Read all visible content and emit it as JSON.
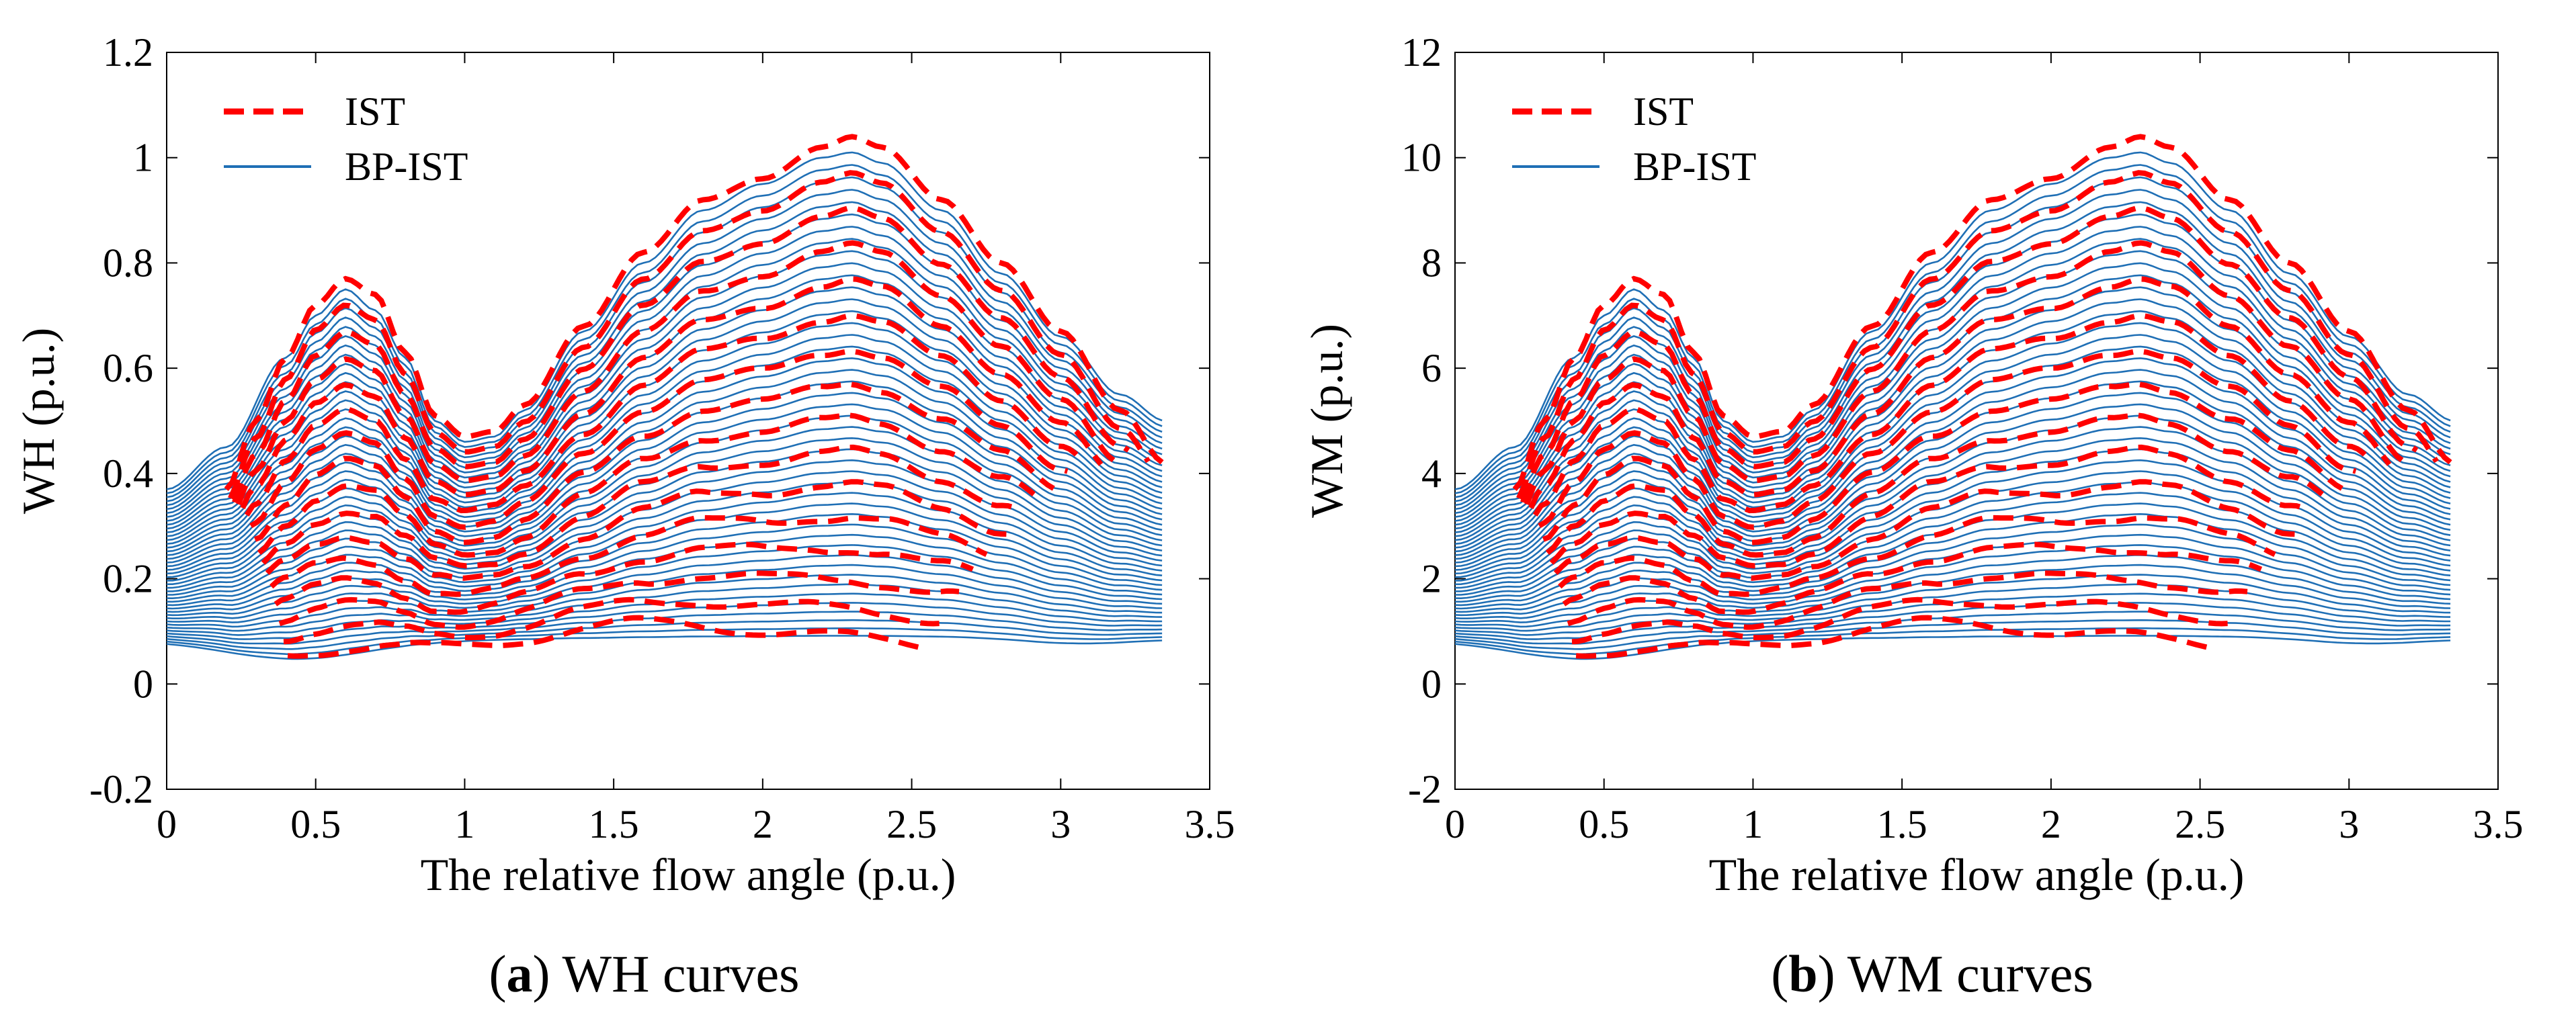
{
  "chart_data": [
    {
      "type": "line",
      "caption_letter": "a",
      "caption_text": "WH curves",
      "ylabel": "WH (p.u.)",
      "xlabel": "The relative flow angle (p.u.)",
      "xlim": [
        0,
        3.5
      ],
      "ylim": [
        -0.2,
        1.2
      ],
      "xticks": [
        0,
        0.5,
        1,
        1.5,
        2,
        2.5,
        3,
        3.5
      ],
      "xtick_labels": [
        "0",
        "0.5",
        "1",
        "1.5",
        "2",
        "2.5",
        "3",
        "3.5"
      ],
      "yticks": [
        -0.2,
        0,
        0.2,
        0.4,
        0.6,
        0.8,
        1,
        1.2
      ],
      "ytick_labels": [
        "-0.2",
        "0",
        "0.2",
        "0.4",
        "0.6",
        "0.8",
        "1",
        "1.2"
      ],
      "legend": [
        "IST",
        "BP-IST"
      ],
      "legend_position": "top-left",
      "series": [
        {
          "name": "IST",
          "style": "dashed",
          "color": "#ff0000",
          "count": 16,
          "top_curve_x": [
            0.2,
            0.3,
            0.4,
            0.5,
            0.6,
            0.7,
            0.8,
            0.9,
            1.0,
            1.1,
            1.2,
            1.4,
            1.6,
            1.8,
            2.0,
            2.2,
            2.3,
            2.4,
            2.6,
            2.8,
            3.0,
            3.2,
            3.35
          ],
          "top_curve_y": [
            0.37,
            0.5,
            0.62,
            0.72,
            0.77,
            0.74,
            0.63,
            0.51,
            0.47,
            0.48,
            0.53,
            0.68,
            0.82,
            0.92,
            0.96,
            1.02,
            1.04,
            1.02,
            0.92,
            0.8,
            0.67,
            0.52,
            0.42
          ]
        },
        {
          "name": "BP-IST",
          "style": "solid",
          "color": "#1f6fb5",
          "count": 45,
          "top_curve_x": [
            0.0,
            0.2,
            0.4,
            0.5,
            0.6,
            0.7,
            0.8,
            0.9,
            1.0,
            1.1,
            1.2,
            1.4,
            1.6,
            1.8,
            2.0,
            2.2,
            2.3,
            2.4,
            2.6,
            2.8,
            3.0,
            3.2,
            3.35
          ],
          "top_curve_y": [
            0.37,
            0.45,
            0.62,
            0.7,
            0.75,
            0.71,
            0.62,
            0.5,
            0.46,
            0.47,
            0.52,
            0.67,
            0.8,
            0.9,
            0.95,
            1.0,
            1.01,
            0.99,
            0.9,
            0.78,
            0.66,
            0.55,
            0.5
          ]
        }
      ]
    },
    {
      "type": "line",
      "caption_letter": "b",
      "caption_text": "WM curves",
      "ylabel": "WM (p.u.)",
      "xlabel": "The relative flow angle (p.u.)",
      "xlim": [
        0,
        3.5
      ],
      "ylim": [
        -2,
        12
      ],
      "xticks": [
        0,
        0.5,
        1,
        1.5,
        2,
        2.5,
        3,
        3.5
      ],
      "xtick_labels": [
        "0",
        "0.5",
        "1",
        "1.5",
        "2",
        "2.5",
        "3",
        "3.5"
      ],
      "yticks": [
        -2,
        0,
        2,
        4,
        6,
        8,
        10,
        12
      ],
      "ytick_labels": [
        "-2",
        "0",
        "2",
        "4",
        "6",
        "8",
        "10",
        "12"
      ],
      "legend": [
        "IST",
        "BP-IST"
      ],
      "legend_position": "top-left",
      "series": [
        {
          "name": "IST",
          "style": "dashed",
          "color": "#ff0000",
          "count": 16,
          "top_curve_x": [
            0.2,
            0.3,
            0.4,
            0.5,
            0.6,
            0.7,
            0.8,
            0.9,
            1.0,
            1.1,
            1.2,
            1.4,
            1.6,
            1.8,
            2.0,
            2.2,
            2.3,
            2.4,
            2.6,
            2.8,
            3.0,
            3.2,
            3.35
          ],
          "top_curve_y": [
            3.7,
            5.0,
            6.2,
            7.2,
            7.7,
            7.4,
            6.3,
            5.1,
            4.7,
            4.8,
            5.3,
            6.8,
            8.2,
            9.2,
            9.6,
            10.2,
            10.4,
            10.2,
            9.2,
            8.0,
            6.7,
            5.2,
            4.2
          ]
        },
        {
          "name": "BP-IST",
          "style": "solid",
          "color": "#1f6fb5",
          "count": 45,
          "top_curve_x": [
            0.0,
            0.2,
            0.4,
            0.5,
            0.6,
            0.7,
            0.8,
            0.9,
            1.0,
            1.1,
            1.2,
            1.4,
            1.6,
            1.8,
            2.0,
            2.2,
            2.3,
            2.4,
            2.6,
            2.8,
            3.0,
            3.2,
            3.35
          ],
          "top_curve_y": [
            3.7,
            4.5,
            6.2,
            7.0,
            7.5,
            7.1,
            6.2,
            5.0,
            4.6,
            4.7,
            5.2,
            6.7,
            8.0,
            9.0,
            9.5,
            10.0,
            10.1,
            9.9,
            9.0,
            7.8,
            6.6,
            5.5,
            5.0
          ]
        }
      ]
    }
  ]
}
